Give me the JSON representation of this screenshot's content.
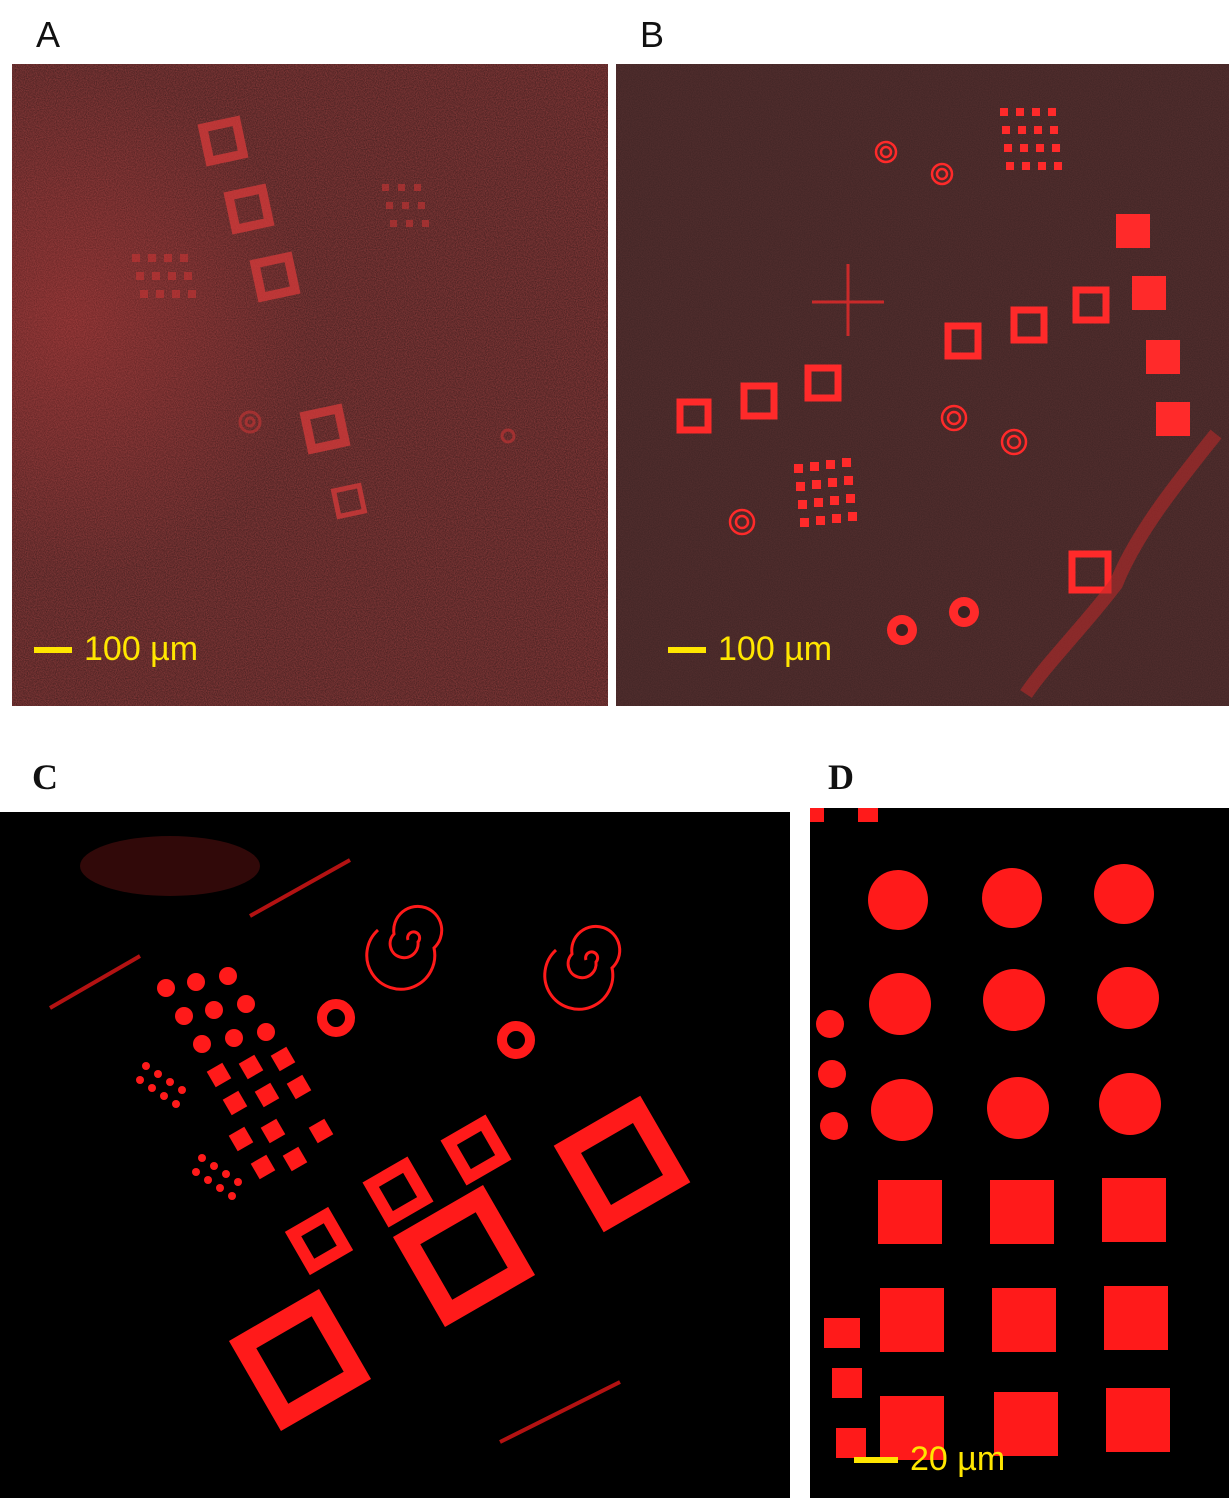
{
  "panels": {
    "a": {
      "label": "A",
      "scale_label": "100 µm"
    },
    "b": {
      "label": "B",
      "scale_label": "100 µm"
    },
    "c": {
      "label": "C"
    },
    "d": {
      "label": "D",
      "scale_label": "20 µm"
    }
  },
  "colors": {
    "fluorescence": "#ff1a1a",
    "background_a": "#3a1c1c",
    "background_b": "#3a2222",
    "background_cd": "#000000",
    "scale_bar": "#ffe600"
  }
}
